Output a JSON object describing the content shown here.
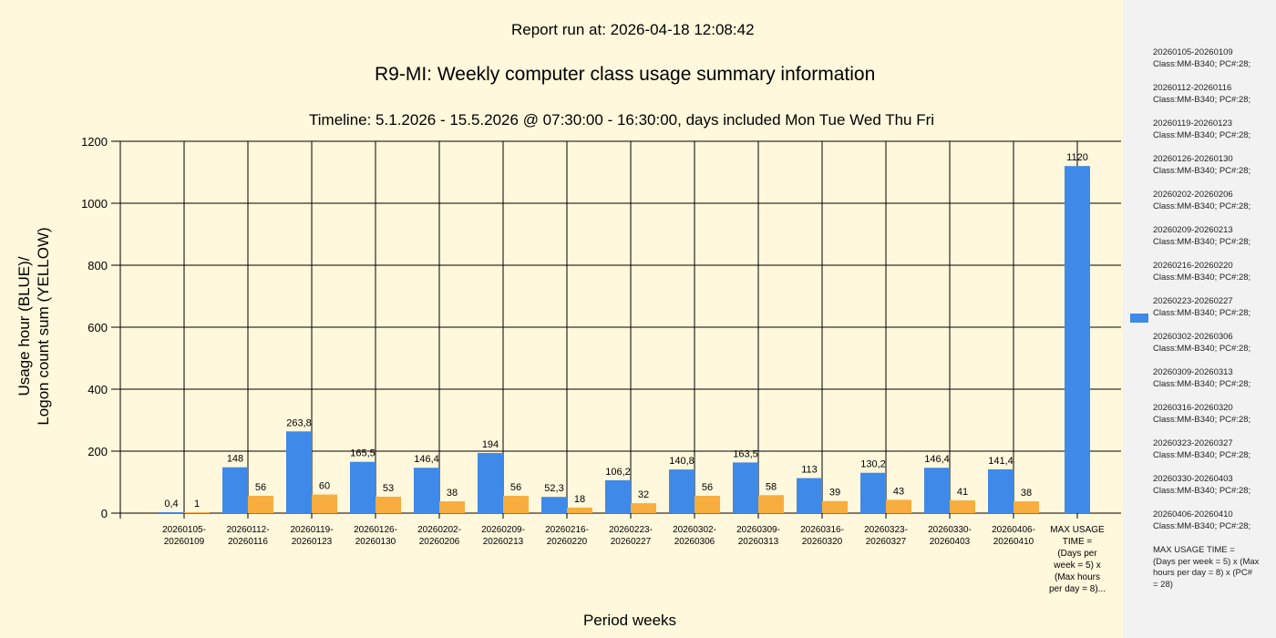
{
  "header": {
    "report_run": "Report run at: 2026-04-18 12:08:42",
    "title": "R9-MI: Weekly computer class usage summary information",
    "timeline": "Timeline:  5.1.2026  - 15.5.2026  @  07:30:00 -  16:30:00, days included Mon Tue Wed Thu Fri"
  },
  "colors": {
    "usage_blue": "#3F89E8",
    "logon_yellow": "#F7AD3F",
    "background": "#FFF8DC",
    "legend_bg": "#F2F2F2"
  },
  "chart_data": {
    "type": "bar",
    "xlabel": "Period weeks",
    "ylabel_line1": "Usage hour (BLUE)/",
    "ylabel_line2": "Logon count sum (YELLOW)",
    "ylim": [
      0,
      1200
    ],
    "yticks": [
      0,
      200,
      400,
      600,
      800,
      1000,
      1200
    ],
    "grid": true,
    "legend_position": "right",
    "categories": [
      [
        "20260105-",
        "20260109"
      ],
      [
        "20260112-",
        "20260116"
      ],
      [
        "20260119-",
        "20260123"
      ],
      [
        "20260126-",
        "20260130"
      ],
      [
        "20260202-",
        "20260206"
      ],
      [
        "20260209-",
        "20260213"
      ],
      [
        "20260216-",
        "20260220"
      ],
      [
        "20260223-",
        "20260227"
      ],
      [
        "20260302-",
        "20260306"
      ],
      [
        "20260309-",
        "20260313"
      ],
      [
        "20260316-",
        "20260320"
      ],
      [
        "20260323-",
        "20260327"
      ],
      [
        "20260330-",
        "20260403"
      ],
      [
        "20260406-",
        "20260410"
      ],
      [
        "MAX USAGE",
        "TIME =",
        "(Days per",
        "week = 5) x",
        "(Max hours",
        "per day = 8)..."
      ]
    ],
    "series": [
      {
        "values": [
          0.4,
          148,
          263.8,
          165.5,
          146.4,
          194,
          52.3,
          106.2,
          140.8,
          163.5,
          113,
          130.2,
          146.4,
          141.4,
          1120
        ],
        "labels": [
          "0,4",
          "148",
          "263,8",
          "165,5",
          "146,4",
          "194",
          "52,3",
          "106,2",
          "140,8",
          "163,5",
          "113",
          "130,2",
          "146,4",
          "141,4",
          "1120"
        ]
      },
      {
        "values": [
          1,
          56,
          60,
          53,
          38,
          56,
          18,
          32,
          56,
          58,
          39,
          43,
          41,
          38,
          null
        ],
        "labels": [
          "1",
          "56",
          "60",
          "53",
          "38",
          "56",
          "18",
          "32",
          "56",
          "58",
          "39",
          "43",
          "41",
          "38",
          ""
        ]
      }
    ]
  },
  "legend": {
    "entries": [
      [
        "20260105-20260109",
        "Class:MM-B340; PC#:28;"
      ],
      [
        "20260112-20260116",
        "Class:MM-B340; PC#:28;"
      ],
      [
        "20260119-20260123",
        "Class:MM-B340; PC#:28;"
      ],
      [
        "20260126-20260130",
        "Class:MM-B340; PC#:28;"
      ],
      [
        "20260202-20260206",
        "Class:MM-B340; PC#:28;"
      ],
      [
        "20260209-20260213",
        "Class:MM-B340; PC#:28;"
      ],
      [
        "20260216-20260220",
        "Class:MM-B340; PC#:28;"
      ],
      [
        "20260223-20260227",
        "Class:MM-B340; PC#:28;"
      ],
      [
        "20260302-20260306",
        "Class:MM-B340; PC#:28;"
      ],
      [
        "20260309-20260313",
        "Class:MM-B340; PC#:28;"
      ],
      [
        "20260316-20260320",
        "Class:MM-B340; PC#:28;"
      ],
      [
        "20260323-20260327",
        "Class:MM-B340; PC#:28;"
      ],
      [
        "20260330-20260403",
        "Class:MM-B340; PC#:28;"
      ],
      [
        "20260406-20260410",
        "Class:MM-B340; PC#:28;"
      ],
      [
        "MAX USAGE TIME =",
        "(Days per week = 5) x (Max",
        "hours per day = 8) x (PC#",
        "= 28)"
      ]
    ]
  }
}
